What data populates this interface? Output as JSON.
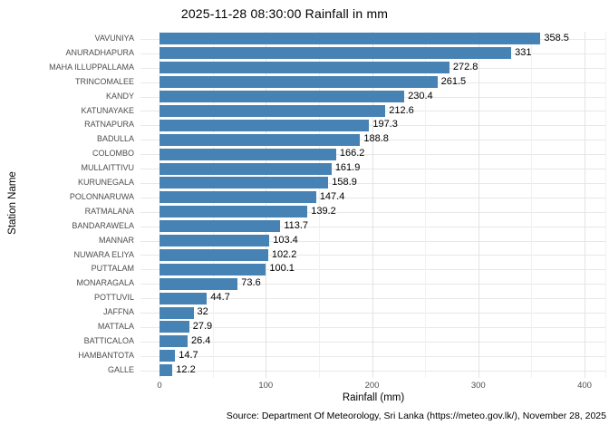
{
  "title": "2025-11-28 08:30:00 Rainfall in mm",
  "axes": {
    "x_label": "Rainfall (mm)",
    "y_label": "Station Name",
    "x_ticks": [
      "0",
      "100",
      "200",
      "300",
      "400"
    ]
  },
  "caption": "Source: Department Of Meteorology, Sri Lanka (https://meteo.gov.lk/), November 28, 2025",
  "colors": {
    "bar": "#4682B4",
    "grid_major": "#e3e3e3",
    "grid_minor": "#f1f1f1",
    "row_grid": "#e8e8e8",
    "axis_text": "#4d4d4d",
    "text": "#000000"
  },
  "chart_data": {
    "type": "bar",
    "orientation": "horizontal",
    "title": "2025-11-28 08:30:00 Rainfall in mm",
    "xlabel": "Rainfall (mm)",
    "ylabel": "Station Name",
    "xlim": [
      0,
      400
    ],
    "x_major_ticks": [
      0,
      100,
      200,
      300,
      400
    ],
    "x_minor_ticks": [
      50,
      150,
      250,
      350
    ],
    "grid": true,
    "legend": false,
    "categories": [
      "VAVUNIYA",
      "ANURADHAPURA",
      "MAHA ILLUPPALLAMA",
      "TRINCOMALEE",
      "KANDY",
      "KATUNAYAKE",
      "RATNAPURA",
      "BADULLA",
      "COLOMBO",
      "MULLAITTIVU",
      "KURUNEGALA",
      "POLONNARUWA",
      "RATMALANA",
      "BANDARAWELA",
      "MANNAR",
      "NUWARA ELIYA",
      "PUTTALAM",
      "MONARAGALA",
      "POTTUVIL",
      "JAFFNA",
      "MATTALA",
      "BATTICALOA",
      "HAMBANTOTA",
      "GALLE"
    ],
    "values": [
      358.5,
      331,
      272.8,
      261.5,
      230.4,
      212.6,
      197.3,
      188.8,
      166.2,
      161.9,
      158.9,
      147.4,
      139.2,
      113.7,
      103.4,
      102.2,
      100.1,
      73.6,
      44.7,
      32,
      27.9,
      26.4,
      14.7,
      12.2
    ],
    "value_labels": [
      "358.5",
      "331",
      "272.8",
      "261.5",
      "230.4",
      "212.6",
      "197.3",
      "188.8",
      "166.2",
      "161.9",
      "158.9",
      "147.4",
      "139.2",
      "113.7",
      "103.4",
      "102.2",
      "100.1",
      "73.6",
      "44.7",
      "32",
      "27.9",
      "26.4",
      "14.7",
      "12.2"
    ]
  }
}
